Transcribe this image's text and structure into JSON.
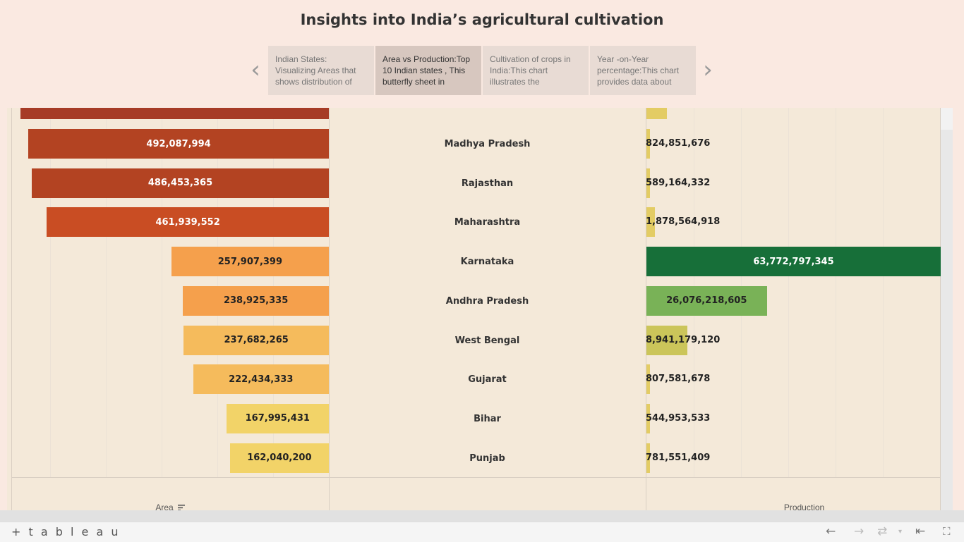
{
  "story_title": "Insights into India’s agricultural cultivation",
  "story_points": [
    {
      "label": "Indian States: Visualizing Areas that shows distribution of"
    },
    {
      "label": "Area vs Production:Top 10 Indian states , This butterfly sheet in"
    },
    {
      "label": "Cultivation of crops in India:This chart illustrates the"
    },
    {
      "label": "Year -on-Year percentage:This chart provides data about"
    }
  ],
  "icons": {
    "prev": "chevron-left-icon",
    "next": "chevron-right-icon",
    "sort": "sort-descending-icon"
  },
  "chart_data": {
    "type": "bar",
    "subtype": "butterfly",
    "categories": [
      "Madhya Pradesh",
      "Rajasthan",
      "Maharashtra",
      "Karnataka",
      "Andhra Pradesh",
      "West Bengal",
      "Gujarat",
      "Bihar",
      "Punjab"
    ],
    "series": [
      {
        "name": "Area",
        "values": [
          492087994,
          486453365,
          461939552,
          257907399,
          238925335,
          237682265,
          222434333,
          167995431,
          162040200
        ],
        "labels": [
          "492,087,994",
          "486,453,365",
          "461,939,552",
          "257,907,399",
          "238,925,335",
          "237,682,265",
          "222,434,333",
          "167,995,431",
          "162,040,200"
        ],
        "colors": [
          "#b34322",
          "#b34322",
          "#c94d23",
          "#f5a04c",
          "#f5a04c",
          "#f5bb5c",
          "#f5bb5c",
          "#f2d368",
          "#f2d368"
        ]
      },
      {
        "name": "Production",
        "values": [
          824851676,
          589164332,
          1878564918,
          63772797345,
          26076218605,
          8941179120,
          807581678,
          544953533,
          781551409
        ],
        "labels": [
          "824,851,676",
          "589,164,332",
          "1,878,564,918",
          "63,772,797,345",
          "26,076,218,605",
          "8,941,179,120",
          "807,581,678",
          "544,953,533",
          "781,551,409"
        ],
        "colors": [
          "#e3cc64",
          "#e3cc64",
          "#e3cc64",
          "#176f39",
          "#79b257",
          "#cbc55a",
          "#e3cc64",
          "#e3cc64",
          "#e3cc64"
        ]
      }
    ],
    "top_partial_row": {
      "area": 505000000,
      "production": 4500000000,
      "area_color": "#a63b26",
      "production_color": "#e3cc64"
    },
    "xlabel_left": "Area",
    "xlabel_right": "Production",
    "grid": true
  },
  "footer": {
    "brand": "+ t a b l e a u",
    "icons": [
      "undo-icon",
      "redo-icon",
      "revert-icon",
      "dropdown-icon",
      "reset-icon",
      "fullscreen-icon"
    ]
  }
}
